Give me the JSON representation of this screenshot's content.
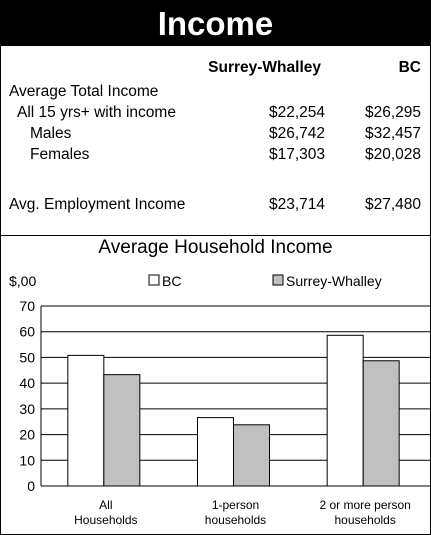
{
  "page": {
    "title": "Income",
    "table": {
      "col_area": "Surrey-Whalley",
      "col_bc": "BC",
      "section_label": "Average Total Income",
      "rows": [
        {
          "label": "All 15 yrs+ with income",
          "area": "$22,254",
          "bc": "$26,295"
        },
        {
          "label": "Males",
          "area": "$26,742",
          "bc": "$32,457"
        },
        {
          "label": "Females",
          "area": "$17,303",
          "bc": "$20,028"
        }
      ],
      "employment": {
        "label": "Avg. Employment Income",
        "area": "$23,714",
        "bc": "$27,480"
      }
    }
  },
  "colors": {
    "bc_fill": "#ffffff",
    "area_fill": "#c0c0c0",
    "stroke": "#000000",
    "title_bg": "#000000"
  },
  "chart_data": {
    "type": "bar",
    "title": "Average Household Income",
    "ylabel": "$,00",
    "categories": [
      [
        "All",
        "Households"
      ],
      [
        "1-person",
        "households"
      ],
      [
        "2 or more person",
        "households"
      ]
    ],
    "series": [
      {
        "name": "BC",
        "values": [
          50.8,
          26.6,
          58.6
        ]
      },
      {
        "name": "Surrey-Whalley",
        "values": [
          43.3,
          23.8,
          48.7
        ]
      }
    ],
    "ylim": [
      0,
      70
    ],
    "yticks": [
      0,
      10,
      20,
      30,
      40,
      50,
      60,
      70
    ],
    "grid": true,
    "legend": "top"
  }
}
